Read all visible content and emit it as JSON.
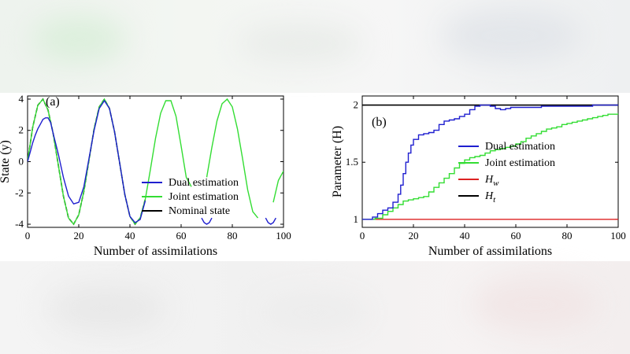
{
  "chart_data": [
    {
      "type": "line",
      "panel_label": "(a)",
      "xlabel": "Number of assimilations",
      "ylabel": "State (y)",
      "xlim": [
        0,
        100
      ],
      "ylim": [
        -4.2,
        4.2
      ],
      "xticks": [
        "0",
        "20",
        "40",
        "60",
        "80",
        "100"
      ],
      "yticks": [
        "-4",
        "-2",
        "0",
        "2",
        "4"
      ],
      "legend_position": "bottom-right",
      "legend": [
        {
          "name": "Dual estimation",
          "color": "#1f1fcf"
        },
        {
          "name": "Joint estimation",
          "color": "#33dd33"
        },
        {
          "name": "Nominal state",
          "color": "#000000"
        }
      ],
      "series": [
        {
          "name": "Nominal state",
          "color": "#000000",
          "style": "dashed",
          "x": [
            0,
            2,
            4,
            6,
            8,
            10,
            12,
            14,
            16,
            18,
            20,
            22,
            24,
            26,
            28,
            30,
            32,
            34,
            36,
            38,
            40,
            42,
            44,
            46
          ],
          "y": [
            0,
            2.2,
            3.6,
            4.0,
            3.3,
            1.8,
            -0.2,
            -2.2,
            -3.6,
            -4.0,
            -3.4,
            -1.9,
            0.1,
            2.1,
            3.5,
            4.0,
            3.4,
            1.9,
            -0.1,
            -2.1,
            -3.5,
            -4.0,
            -3.6,
            -2.4
          ]
        },
        {
          "name": "Joint estimation",
          "color": "#33dd33",
          "x": [
            0,
            2,
            4,
            6,
            8,
            10,
            12,
            14,
            16,
            18,
            20,
            22,
            24,
            26,
            28,
            30,
            32,
            34,
            36,
            38,
            40,
            42,
            44,
            46,
            48,
            50,
            52,
            54,
            56,
            58,
            60,
            62,
            64
          ],
          "y": [
            0,
            2.2,
            3.6,
            4.0,
            3.3,
            1.8,
            -0.2,
            -2.2,
            -3.6,
            -4.0,
            -3.4,
            -1.9,
            0.1,
            2.1,
            3.5,
            4.0,
            3.4,
            1.9,
            -0.1,
            -2.1,
            -3.5,
            -4.0,
            -3.6,
            -2.4,
            -0.5,
            1.5,
            3.1,
            3.9,
            3.9,
            2.9,
            1.0,
            -1.0,
            -1.6
          ]
        },
        {
          "name": "Joint estimation (segment 2)",
          "color": "#33dd33",
          "x": [
            70,
            72,
            74,
            76,
            78,
            80,
            82,
            84,
            86,
            88,
            90
          ],
          "y": [
            -1.0,
            0.9,
            2.6,
            3.7,
            4.0,
            3.5,
            2.1,
            0.2,
            -1.8,
            -3.2,
            -3.6
          ]
        },
        {
          "name": "Joint estimation (segment 3)",
          "color": "#33dd33",
          "x": [
            96,
            98,
            100
          ],
          "y": [
            -2.6,
            -1.2,
            -0.6
          ]
        },
        {
          "name": "Dual estimation",
          "color": "#1f1fcf",
          "x": [
            0,
            1,
            2,
            3,
            4,
            5,
            6,
            7,
            8,
            9,
            10,
            12,
            14,
            16,
            18,
            20,
            22,
            24,
            26,
            28,
            30,
            32,
            34,
            36,
            38,
            40,
            42,
            44,
            46
          ],
          "y": [
            0,
            0.6,
            1.2,
            1.7,
            2.1,
            2.4,
            2.7,
            2.8,
            2.8,
            2.5,
            1.8,
            0.5,
            -1.0,
            -2.2,
            -2.7,
            -2.6,
            -1.6,
            0.2,
            2.0,
            3.4,
            3.9,
            3.4,
            1.9,
            -0.1,
            -2.1,
            -3.5,
            -3.9,
            -3.7,
            -2.5
          ]
        },
        {
          "name": "Dips",
          "color": "#1f1fcf",
          "x": [
            68,
            69,
            70,
            71,
            72
          ],
          "y": [
            -3.6,
            -3.9,
            -4.0,
            -3.9,
            -3.6
          ]
        },
        {
          "name": "Dips 2",
          "color": "#1f1fcf",
          "x": [
            93,
            94,
            95,
            96,
            97
          ],
          "y": [
            -3.6,
            -3.9,
            -4.0,
            -3.9,
            -3.6
          ]
        }
      ]
    },
    {
      "type": "line",
      "panel_label": "(b)",
      "xlabel": "Number of assimilations",
      "ylabel": "Parameter (H)",
      "xlim": [
        0,
        100
      ],
      "ylim": [
        0.93,
        2.08
      ],
      "xticks": [
        "0",
        "20",
        "40",
        "60",
        "80",
        "100"
      ],
      "yticks": [
        "1",
        "1.5",
        "2"
      ],
      "legend_position": "right",
      "legend": [
        {
          "name": "Dual estimation",
          "color": "#1f1fcf"
        },
        {
          "name": "Joint estimation",
          "color": "#33dd33"
        },
        {
          "name": "H_w",
          "color": "#dd2222"
        },
        {
          "name": "H_t",
          "color": "#000000"
        }
      ],
      "series": [
        {
          "name": "H_t",
          "color": "#000000",
          "x": [
            0,
            100
          ],
          "y": [
            2,
            2
          ]
        },
        {
          "name": "H_w",
          "color": "#dd2222",
          "x": [
            0,
            100
          ],
          "y": [
            1,
            1
          ]
        },
        {
          "name": "Joint estimation",
          "color": "#33dd33",
          "step": true,
          "x": [
            0,
            5,
            8,
            10,
            12,
            14,
            16,
            18,
            20,
            22,
            24,
            26,
            28,
            30,
            32,
            34,
            36,
            38,
            40,
            42,
            44,
            46,
            48,
            50,
            52,
            54,
            56,
            58,
            60,
            62,
            64,
            66,
            68,
            70,
            72,
            74,
            76,
            78,
            80,
            82,
            84,
            86,
            88,
            90,
            92,
            94,
            96,
            98,
            100
          ],
          "y": [
            1.0,
            1.01,
            1.04,
            1.07,
            1.1,
            1.13,
            1.16,
            1.17,
            1.18,
            1.19,
            1.2,
            1.24,
            1.28,
            1.32,
            1.36,
            1.4,
            1.45,
            1.49,
            1.52,
            1.54,
            1.55,
            1.56,
            1.58,
            1.6,
            1.61,
            1.62,
            1.63,
            1.64,
            1.66,
            1.68,
            1.71,
            1.73,
            1.75,
            1.77,
            1.79,
            1.8,
            1.81,
            1.83,
            1.84,
            1.85,
            1.86,
            1.87,
            1.88,
            1.89,
            1.9,
            1.91,
            1.92,
            1.92,
            1.93
          ]
        },
        {
          "name": "Dual estimation",
          "color": "#1f1fcf",
          "step": true,
          "x": [
            0,
            4,
            6,
            8,
            10,
            12,
            14,
            15,
            16,
            17,
            18,
            19,
            20,
            22,
            24,
            26,
            28,
            30,
            32,
            34,
            36,
            38,
            40,
            42,
            44,
            46,
            48,
            50,
            52,
            54,
            56,
            58,
            60,
            65,
            70,
            75,
            80,
            85,
            90,
            95,
            100
          ],
          "y": [
            1.0,
            1.02,
            1.05,
            1.08,
            1.1,
            1.15,
            1.22,
            1.3,
            1.4,
            1.5,
            1.58,
            1.65,
            1.7,
            1.74,
            1.75,
            1.76,
            1.78,
            1.83,
            1.86,
            1.87,
            1.88,
            1.9,
            1.92,
            1.96,
            1.99,
            2.0,
            2.0,
            1.99,
            1.97,
            1.96,
            1.97,
            1.98,
            1.98,
            1.98,
            1.99,
            1.99,
            1.99,
            1.99,
            2.0,
            2.0,
            2.0
          ]
        }
      ]
    }
  ]
}
